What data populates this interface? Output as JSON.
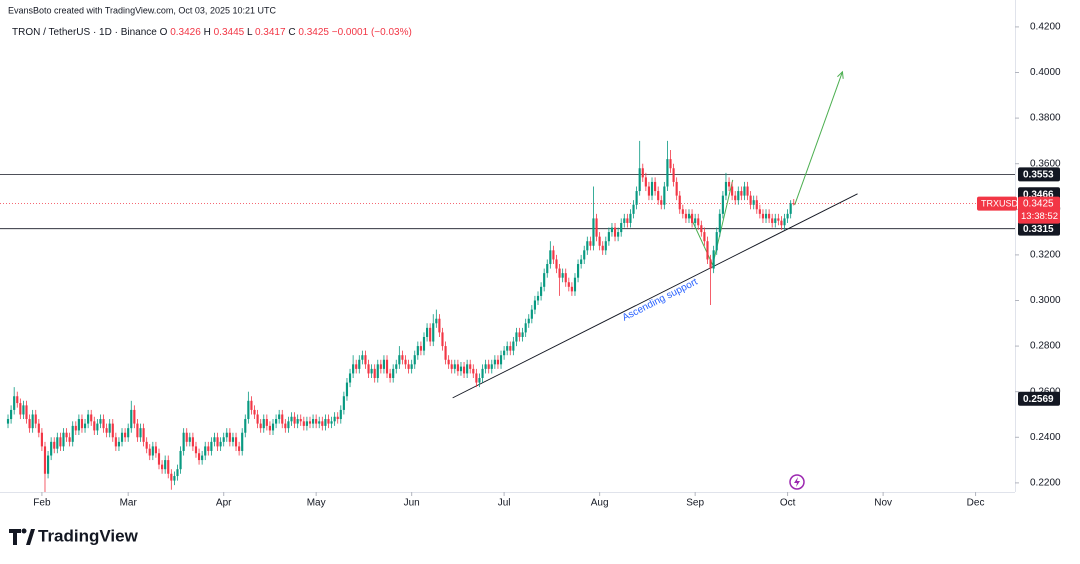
{
  "header": "EvansBoto created with TradingView.com, Oct 03, 2025 10:21 UTC",
  "footer": {
    "brand": "TradingView"
  },
  "chart_data": {
    "type": "candlestick",
    "symbol": "TRON / TetherUS · 1D · Binance",
    "legend": {
      "o_label": "O",
      "h_label": "H",
      "l_label": "L",
      "c_label": "C",
      "change": "−0.0001 (−0.03%)"
    },
    "up_color": "#089981",
    "down_color": "#f23645",
    "xlim": [
      -2.6,
      326.8
    ],
    "xticks": [
      {
        "value": 11,
        "label": "Feb"
      },
      {
        "value": 39,
        "label": "Mar"
      },
      {
        "value": 70,
        "label": "Apr"
      },
      {
        "value": 100,
        "label": "May"
      },
      {
        "value": 131,
        "label": "Jun"
      },
      {
        "value": 161,
        "label": "Jul"
      },
      {
        "value": 192,
        "label": "Aug"
      },
      {
        "value": 223,
        "label": "Sep"
      },
      {
        "value": 253,
        "label": "Oct"
      },
      {
        "value": 284,
        "label": "Nov"
      },
      {
        "value": 314,
        "label": "Dec"
      }
    ],
    "ylim": [
      0.216,
      0.4318
    ],
    "yticks": [
      {
        "value": 0.22,
        "label": "0.2200"
      },
      {
        "value": 0.24,
        "label": "0.2400"
      },
      {
        "value": 0.26,
        "label": "0.2600"
      },
      {
        "value": 0.28,
        "label": "0.2800"
      },
      {
        "value": 0.3,
        "label": "0.3000"
      },
      {
        "value": 0.32,
        "label": "0.3200"
      },
      {
        "value": 0.34,
        "label": "0.3400"
      },
      {
        "value": 0.36,
        "label": "0.3600"
      },
      {
        "value": 0.38,
        "label": "0.3800"
      },
      {
        "value": 0.4,
        "label": "0.4000"
      },
      {
        "value": 0.42,
        "label": "0.4200"
      }
    ],
    "grid": false,
    "open": [
      0.246,
      0.248,
      0.252,
      0.258,
      0.255,
      0.25,
      0.254,
      0.248,
      0.244,
      0.25,
      0.246,
      0.242,
      0.236,
      0.224,
      0.232,
      0.238,
      0.235,
      0.24,
      0.236,
      0.242,
      0.24,
      0.238,
      0.245,
      0.243,
      0.248,
      0.244,
      0.246,
      0.25,
      0.247,
      0.243,
      0.246,
      0.248,
      0.244,
      0.242,
      0.246,
      0.24,
      0.236,
      0.238,
      0.242,
      0.24,
      0.244,
      0.252,
      0.246,
      0.24,
      0.244,
      0.238,
      0.235,
      0.232,
      0.236,
      0.233,
      0.228,
      0.226,
      0.23,
      0.224,
      0.221,
      0.223,
      0.226,
      0.234,
      0.242,
      0.238,
      0.24,
      0.236,
      0.233,
      0.23,
      0.232,
      0.236,
      0.234,
      0.238,
      0.24,
      0.236,
      0.238,
      0.24,
      0.242,
      0.238,
      0.24,
      0.236,
      0.234,
      0.242,
      0.248,
      0.256,
      0.252,
      0.25,
      0.246,
      0.244,
      0.248,
      0.245,
      0.243,
      0.246,
      0.248,
      0.25,
      0.246,
      0.244,
      0.247,
      0.249,
      0.246,
      0.248,
      0.247,
      0.245,
      0.247,
      0.246,
      0.248,
      0.246,
      0.247,
      0.245,
      0.248,
      0.246,
      0.247,
      0.249,
      0.248,
      0.252,
      0.258,
      0.264,
      0.268,
      0.272,
      0.27,
      0.274,
      0.276,
      0.272,
      0.268,
      0.27,
      0.266,
      0.272,
      0.27,
      0.274,
      0.268,
      0.266,
      0.27,
      0.272,
      0.276,
      0.274,
      0.272,
      0.27,
      0.272,
      0.276,
      0.28,
      0.278,
      0.284,
      0.288,
      0.282,
      0.29,
      0.292,
      0.286,
      0.28,
      0.274,
      0.272,
      0.27,
      0.272,
      0.269,
      0.271,
      0.268,
      0.272,
      0.27,
      0.268,
      0.264,
      0.266,
      0.27,
      0.272,
      0.27,
      0.272,
      0.274,
      0.272,
      0.276,
      0.278,
      0.28,
      0.278,
      0.282,
      0.286,
      0.284,
      0.286,
      0.29,
      0.292,
      0.296,
      0.3,
      0.302,
      0.306,
      0.312,
      0.316,
      0.322,
      0.318,
      0.314,
      0.31,
      0.312,
      0.308,
      0.306,
      0.304,
      0.31,
      0.316,
      0.318,
      0.322,
      0.326,
      0.324,
      0.336,
      0.328,
      0.324,
      0.322,
      0.326,
      0.33,
      0.332,
      0.328,
      0.33,
      0.334,
      0.336,
      0.334,
      0.338,
      0.342,
      0.348,
      0.358,
      0.354,
      0.35,
      0.346,
      0.352,
      0.348,
      0.344,
      0.342,
      0.35,
      0.362,
      0.358,
      0.352,
      0.346,
      0.34,
      0.338,
      0.336,
      0.338,
      0.334,
      0.336,
      0.333,
      0.33,
      0.326,
      0.318,
      0.314,
      0.322,
      0.33,
      0.338,
      0.346,
      0.352,
      0.35,
      0.346,
      0.344,
      0.348,
      0.346,
      0.35,
      0.346,
      0.342,
      0.344,
      0.34,
      0.338,
      0.336,
      0.338,
      0.336,
      0.334,
      0.336,
      0.335,
      0.333,
      0.336,
      0.338,
      0.3426
    ],
    "high": [
      0.25,
      0.254,
      0.262,
      0.26,
      0.257,
      0.256,
      0.256,
      0.25,
      0.252,
      0.252,
      0.248,
      0.244,
      0.238,
      0.234,
      0.24,
      0.24,
      0.242,
      0.242,
      0.244,
      0.244,
      0.242,
      0.247,
      0.247,
      0.25,
      0.25,
      0.248,
      0.252,
      0.252,
      0.249,
      0.248,
      0.25,
      0.25,
      0.246,
      0.248,
      0.248,
      0.242,
      0.24,
      0.244,
      0.244,
      0.246,
      0.256,
      0.254,
      0.248,
      0.246,
      0.246,
      0.24,
      0.237,
      0.238,
      0.238,
      0.235,
      0.23,
      0.232,
      0.232,
      0.226,
      0.225,
      0.228,
      0.236,
      0.244,
      0.244,
      0.242,
      0.242,
      0.238,
      0.235,
      0.234,
      0.238,
      0.238,
      0.24,
      0.242,
      0.242,
      0.24,
      0.242,
      0.244,
      0.244,
      0.242,
      0.242,
      0.238,
      0.244,
      0.25,
      0.26,
      0.258,
      0.254,
      0.252,
      0.248,
      0.25,
      0.25,
      0.247,
      0.248,
      0.25,
      0.252,
      0.252,
      0.248,
      0.249,
      0.251,
      0.251,
      0.25,
      0.25,
      0.249,
      0.249,
      0.249,
      0.25,
      0.25,
      0.249,
      0.249,
      0.25,
      0.25,
      0.249,
      0.251,
      0.251,
      0.254,
      0.26,
      0.266,
      0.27,
      0.276,
      0.274,
      0.276,
      0.278,
      0.278,
      0.274,
      0.272,
      0.272,
      0.274,
      0.274,
      0.276,
      0.276,
      0.27,
      0.272,
      0.274,
      0.28,
      0.278,
      0.276,
      0.274,
      0.274,
      0.278,
      0.282,
      0.282,
      0.286,
      0.29,
      0.29,
      0.294,
      0.296,
      0.294,
      0.288,
      0.282,
      0.276,
      0.274,
      0.274,
      0.274,
      0.273,
      0.273,
      0.274,
      0.274,
      0.272,
      0.27,
      0.268,
      0.272,
      0.274,
      0.274,
      0.274,
      0.276,
      0.276,
      0.278,
      0.28,
      0.282,
      0.282,
      0.284,
      0.288,
      0.288,
      0.288,
      0.292,
      0.294,
      0.298,
      0.302,
      0.304,
      0.308,
      0.314,
      0.318,
      0.326,
      0.324,
      0.32,
      0.316,
      0.314,
      0.314,
      0.31,
      0.308,
      0.312,
      0.318,
      0.32,
      0.324,
      0.328,
      0.328,
      0.35,
      0.338,
      0.33,
      0.326,
      0.328,
      0.332,
      0.334,
      0.334,
      0.332,
      0.336,
      0.338,
      0.338,
      0.34,
      0.344,
      0.35,
      0.37,
      0.36,
      0.356,
      0.352,
      0.354,
      0.354,
      0.35,
      0.346,
      0.352,
      0.37,
      0.366,
      0.36,
      0.354,
      0.348,
      0.342,
      0.34,
      0.34,
      0.34,
      0.338,
      0.338,
      0.335,
      0.332,
      0.328,
      0.32,
      0.324,
      0.332,
      0.34,
      0.348,
      0.356,
      0.354,
      0.352,
      0.348,
      0.35,
      0.35,
      0.352,
      0.352,
      0.348,
      0.346,
      0.346,
      0.342,
      0.34,
      0.34,
      0.34,
      0.338,
      0.338,
      0.338,
      0.337,
      0.338,
      0.34,
      0.344,
      0.3445
    ],
    "low": [
      0.244,
      0.246,
      0.25,
      0.253,
      0.248,
      0.248,
      0.246,
      0.242,
      0.242,
      0.244,
      0.24,
      0.234,
      0.216,
      0.222,
      0.23,
      0.233,
      0.233,
      0.234,
      0.234,
      0.238,
      0.236,
      0.236,
      0.241,
      0.241,
      0.242,
      0.242,
      0.244,
      0.245,
      0.241,
      0.241,
      0.244,
      0.242,
      0.24,
      0.24,
      0.238,
      0.234,
      0.234,
      0.236,
      0.238,
      0.238,
      0.242,
      0.244,
      0.238,
      0.238,
      0.236,
      0.233,
      0.23,
      0.23,
      0.231,
      0.226,
      0.224,
      0.224,
      0.222,
      0.217,
      0.219,
      0.221,
      0.224,
      0.232,
      0.236,
      0.236,
      0.234,
      0.231,
      0.228,
      0.228,
      0.23,
      0.232,
      0.232,
      0.236,
      0.234,
      0.234,
      0.236,
      0.238,
      0.236,
      0.236,
      0.234,
      0.232,
      0.232,
      0.24,
      0.246,
      0.25,
      0.248,
      0.244,
      0.242,
      0.242,
      0.243,
      0.241,
      0.241,
      0.244,
      0.246,
      0.244,
      0.242,
      0.242,
      0.245,
      0.244,
      0.244,
      0.245,
      0.243,
      0.243,
      0.244,
      0.244,
      0.244,
      0.244,
      0.243,
      0.243,
      0.244,
      0.244,
      0.245,
      0.246,
      0.246,
      0.25,
      0.256,
      0.262,
      0.266,
      0.268,
      0.268,
      0.272,
      0.27,
      0.266,
      0.266,
      0.264,
      0.264,
      0.268,
      0.268,
      0.266,
      0.264,
      0.264,
      0.268,
      0.27,
      0.272,
      0.27,
      0.268,
      0.268,
      0.27,
      0.274,
      0.276,
      0.276,
      0.282,
      0.28,
      0.28,
      0.288,
      0.284,
      0.278,
      0.272,
      0.27,
      0.268,
      0.268,
      0.267,
      0.267,
      0.266,
      0.266,
      0.268,
      0.266,
      0.262,
      0.262,
      0.264,
      0.268,
      0.268,
      0.268,
      0.27,
      0.27,
      0.27,
      0.274,
      0.276,
      0.276,
      0.276,
      0.28,
      0.282,
      0.282,
      0.284,
      0.288,
      0.29,
      0.294,
      0.298,
      0.3,
      0.304,
      0.31,
      0.314,
      0.316,
      0.312,
      0.302,
      0.308,
      0.306,
      0.304,
      0.302,
      0.302,
      0.308,
      0.314,
      0.316,
      0.32,
      0.322,
      0.322,
      0.326,
      0.322,
      0.32,
      0.32,
      0.324,
      0.328,
      0.326,
      0.326,
      0.328,
      0.332,
      0.332,
      0.332,
      0.336,
      0.34,
      0.346,
      0.352,
      0.348,
      0.344,
      0.344,
      0.346,
      0.342,
      0.34,
      0.34,
      0.348,
      0.356,
      0.35,
      0.344,
      0.338,
      0.336,
      0.334,
      0.334,
      0.332,
      0.332,
      0.331,
      0.328,
      0.324,
      0.316,
      0.298,
      0.312,
      0.32,
      0.328,
      0.336,
      0.344,
      0.348,
      0.344,
      0.342,
      0.342,
      0.344,
      0.344,
      0.344,
      0.34,
      0.34,
      0.338,
      0.336,
      0.334,
      0.334,
      0.334,
      0.332,
      0.332,
      0.333,
      0.331,
      0.331,
      0.334,
      0.336,
      0.3417
    ],
    "close": [
      0.248,
      0.252,
      0.258,
      0.255,
      0.25,
      0.254,
      0.248,
      0.244,
      0.25,
      0.246,
      0.242,
      0.236,
      0.224,
      0.232,
      0.238,
      0.235,
      0.24,
      0.236,
      0.242,
      0.24,
      0.238,
      0.245,
      0.243,
      0.248,
      0.244,
      0.246,
      0.25,
      0.247,
      0.243,
      0.246,
      0.248,
      0.244,
      0.242,
      0.246,
      0.24,
      0.236,
      0.238,
      0.242,
      0.24,
      0.244,
      0.252,
      0.246,
      0.24,
      0.244,
      0.238,
      0.235,
      0.232,
      0.236,
      0.233,
      0.228,
      0.226,
      0.23,
      0.224,
      0.221,
      0.223,
      0.226,
      0.234,
      0.242,
      0.238,
      0.24,
      0.236,
      0.233,
      0.23,
      0.232,
      0.236,
      0.234,
      0.238,
      0.24,
      0.236,
      0.238,
      0.24,
      0.242,
      0.238,
      0.24,
      0.236,
      0.234,
      0.242,
      0.248,
      0.256,
      0.252,
      0.25,
      0.246,
      0.244,
      0.248,
      0.245,
      0.243,
      0.246,
      0.248,
      0.25,
      0.246,
      0.244,
      0.247,
      0.249,
      0.246,
      0.248,
      0.247,
      0.245,
      0.247,
      0.246,
      0.248,
      0.246,
      0.247,
      0.245,
      0.248,
      0.246,
      0.247,
      0.249,
      0.248,
      0.252,
      0.258,
      0.264,
      0.268,
      0.272,
      0.27,
      0.274,
      0.276,
      0.272,
      0.268,
      0.27,
      0.266,
      0.272,
      0.27,
      0.274,
      0.268,
      0.266,
      0.27,
      0.272,
      0.276,
      0.274,
      0.272,
      0.27,
      0.272,
      0.276,
      0.28,
      0.278,
      0.284,
      0.288,
      0.282,
      0.29,
      0.292,
      0.286,
      0.28,
      0.274,
      0.272,
      0.27,
      0.272,
      0.269,
      0.271,
      0.268,
      0.272,
      0.27,
      0.268,
      0.264,
      0.266,
      0.27,
      0.272,
      0.27,
      0.272,
      0.274,
      0.272,
      0.276,
      0.278,
      0.28,
      0.278,
      0.282,
      0.286,
      0.284,
      0.286,
      0.29,
      0.292,
      0.296,
      0.3,
      0.302,
      0.306,
      0.312,
      0.316,
      0.322,
      0.318,
      0.314,
      0.31,
      0.312,
      0.308,
      0.306,
      0.304,
      0.31,
      0.316,
      0.318,
      0.322,
      0.326,
      0.324,
      0.336,
      0.328,
      0.324,
      0.322,
      0.326,
      0.33,
      0.332,
      0.328,
      0.33,
      0.334,
      0.336,
      0.334,
      0.338,
      0.342,
      0.348,
      0.358,
      0.354,
      0.35,
      0.346,
      0.352,
      0.348,
      0.344,
      0.342,
      0.35,
      0.362,
      0.358,
      0.352,
      0.346,
      0.34,
      0.338,
      0.336,
      0.338,
      0.334,
      0.336,
      0.333,
      0.33,
      0.326,
      0.318,
      0.314,
      0.322,
      0.33,
      0.338,
      0.346,
      0.352,
      0.35,
      0.346,
      0.344,
      0.348,
      0.346,
      0.35,
      0.346,
      0.342,
      0.344,
      0.34,
      0.338,
      0.336,
      0.338,
      0.336,
      0.334,
      0.336,
      0.335,
      0.333,
      0.336,
      0.338,
      0.3426,
      0.3425
    ],
    "levels": [
      0.3553,
      0.3315
    ],
    "markers": [
      0.3466,
      0.2569
    ],
    "last_price": 0.3425,
    "symbol_tag": "TRXUSDT",
    "countdown": "13:38:52",
    "support": {
      "label": "Ascending support",
      "points": [
        [
          144.3,
          0.2573
        ],
        [
          275.7,
          0.3468
        ]
      ]
    },
    "projection": [
      [
        221.2,
        0.3375
      ],
      [
        228.7,
        0.3156
      ],
      [
        235.2,
        0.3529
      ]
    ],
    "target_arrow": [
      [
        255.3,
        0.3419
      ],
      [
        270.8,
        0.4003
      ]
    ]
  }
}
